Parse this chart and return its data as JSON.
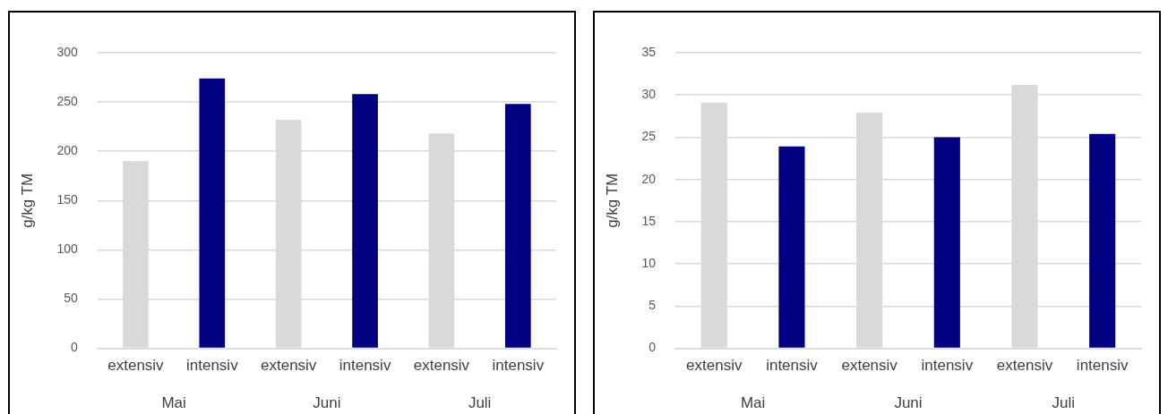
{
  "chart_data": [
    {
      "type": "bar",
      "ylabel": "g/kg TM",
      "categories": [
        "extensiv",
        "intensiv",
        "extensiv",
        "intensiv",
        "extensiv",
        "intensiv"
      ],
      "values": [
        190,
        274,
        232,
        258,
        218,
        248
      ],
      "colors": [
        "#d9d9d9",
        "#000080",
        "#d9d9d9",
        "#000080",
        "#d9d9d9",
        "#000080"
      ],
      "ylim": [
        0,
        300
      ],
      "yticks": [
        0,
        50,
        100,
        150,
        200,
        250,
        300
      ],
      "grid": "y",
      "legend": false,
      "annotations": [
        "Mai",
        "Juni",
        "Juli"
      ]
    },
    {
      "type": "bar",
      "ylabel": "g/kg TM",
      "categories": [
        "extensiv",
        "intensiv",
        "extensiv",
        "intensiv",
        "extensiv",
        "intensiv"
      ],
      "values": [
        29.1,
        23.9,
        27.9,
        25.0,
        31.2,
        25.4
      ],
      "colors": [
        "#d9d9d9",
        "#000080",
        "#d9d9d9",
        "#000080",
        "#d9d9d9",
        "#000080"
      ],
      "ylim": [
        0,
        35
      ],
      "yticks": [
        0,
        5,
        10,
        15,
        20,
        25,
        30,
        35
      ],
      "grid": "y",
      "legend": false,
      "annotations": [
        "Mai",
        "Juni",
        "Juli"
      ]
    }
  ]
}
